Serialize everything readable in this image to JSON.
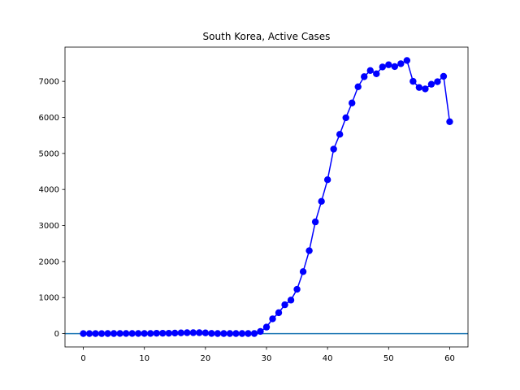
{
  "chart_data": {
    "type": "line",
    "title": "South Korea, Active Cases",
    "xlabel": "",
    "ylabel": "",
    "xlim": [
      -3,
      63
    ],
    "ylim": [
      -370,
      7950
    ],
    "xticks": [
      0,
      10,
      20,
      30,
      40,
      50,
      60
    ],
    "yticks": [
      0,
      1000,
      2000,
      3000,
      4000,
      5000,
      6000,
      7000
    ],
    "grid": false,
    "legend": "none",
    "reference_line": {
      "y": 0,
      "color": "#1f77b4"
    },
    "series": [
      {
        "color": "#0000ff",
        "marker": "circle",
        "x": [
          0,
          1,
          2,
          3,
          4,
          5,
          6,
          7,
          8,
          9,
          10,
          11,
          12,
          13,
          14,
          15,
          16,
          17,
          18,
          19,
          20,
          21,
          22,
          23,
          24,
          25,
          26,
          27,
          28,
          29,
          30,
          31,
          32,
          33,
          34,
          35,
          36,
          37,
          38,
          39,
          40,
          41,
          42,
          43,
          44,
          45,
          46,
          47,
          48,
          49,
          50,
          51,
          52,
          53,
          54,
          55,
          56,
          57,
          58,
          59,
          60
        ],
        "y": [
          1,
          1,
          1,
          1,
          2,
          2,
          3,
          3,
          3,
          4,
          4,
          4,
          10,
          10,
          10,
          15,
          20,
          25,
          25,
          25,
          20,
          5,
          2,
          2,
          2,
          2,
          2,
          2,
          2,
          60,
          180,
          410,
          580,
          800,
          930,
          1230,
          1720,
          2300,
          3100,
          3670,
          4270,
          5120,
          5530,
          5990,
          6400,
          6850,
          7130,
          7300,
          7210,
          7400,
          7460,
          7410,
          7490,
          7580,
          7000,
          6830,
          6790,
          6920,
          6990,
          7140,
          5880
        ]
      }
    ]
  }
}
